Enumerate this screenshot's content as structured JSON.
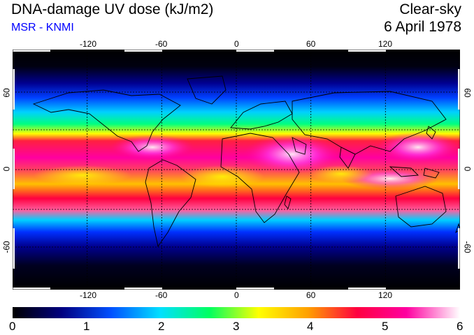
{
  "header": {
    "title": "DNA-damage UV dose (kJ/m2)",
    "source": "MSR - KNMI",
    "sky": "Clear-sky",
    "date": "6 April 1978",
    "source_color": "#0000ff"
  },
  "axes": {
    "lon_ticks": [
      "-120",
      "-60",
      "0",
      "60",
      "120"
    ],
    "lat_ticks": [
      "60",
      "0",
      "-60"
    ]
  },
  "colorbar": {
    "labels": [
      "0",
      "1",
      "2",
      "3",
      "4",
      "5",
      "6"
    ],
    "stops": [
      "#000000",
      "#000080",
      "#0050ff",
      "#00e0ff",
      "#00ff60",
      "#ffff00",
      "#ffa000",
      "#ff0040",
      "#ff00a0",
      "#ffffff"
    ]
  }
}
